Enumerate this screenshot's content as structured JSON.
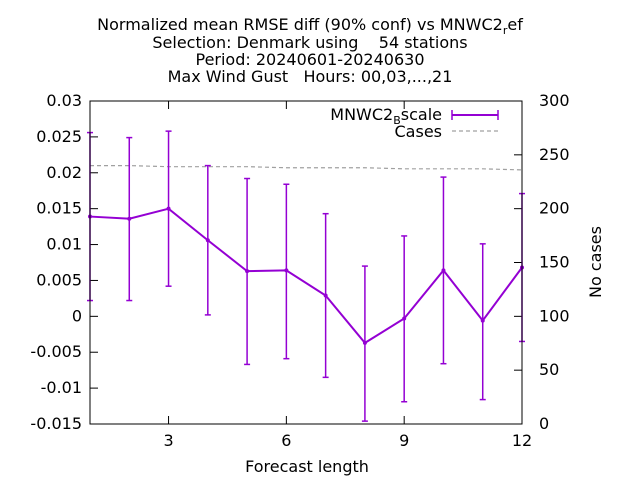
{
  "chart_data": {
    "type": "line",
    "title": {
      "line1_prefix": "Normalized mean RMSE diff (90% conf) vs MNWC2",
      "line1_sub": "r",
      "line1_suffix": "ef",
      "line2": "Selection: Denmark using    54 stations",
      "line3": "Period: 20240601-20240630",
      "line4": "Max Wind Gust   Hours: 00,03,...,21"
    },
    "xlabel": "Forecast length",
    "ylabel": "",
    "y2label": "No cases",
    "xlim": [
      1,
      12
    ],
    "ylim": [
      -0.015,
      0.03
    ],
    "y2lim": [
      0,
      300
    ],
    "xticks": [
      "3",
      "6",
      "9",
      "12"
    ],
    "yticks": [
      "0.03",
      "0.025",
      "0.02",
      "0.015",
      "0.01",
      "0.005",
      "0",
      "-0.005",
      "-0.01",
      "-0.015"
    ],
    "y2ticks": [
      "300",
      "250",
      "200",
      "150",
      "100",
      "50",
      "0"
    ],
    "legend_position": "top-right",
    "series": [
      {
        "name_prefix": "MNWC2",
        "name_sub": "B",
        "name_suffix": "scale",
        "color": "#9400d3",
        "style": "line-with-errorbars",
        "x": [
          1,
          2,
          3,
          4,
          5,
          6,
          7,
          8,
          9,
          10,
          11,
          12
        ],
        "y": [
          0.0139,
          0.0136,
          0.015,
          0.0106,
          0.0063,
          0.0064,
          0.0029,
          -0.0037,
          -0.0003,
          0.0064,
          -0.0006,
          0.0068
        ],
        "y_low": [
          0.0022,
          0.0022,
          0.0042,
          0.0002,
          -0.0067,
          -0.0059,
          -0.0085,
          -0.0146,
          -0.0119,
          -0.0066,
          -0.0116,
          -0.0035
        ],
        "y_high": [
          0.0256,
          0.0249,
          0.0258,
          0.021,
          0.0192,
          0.0184,
          0.0143,
          0.007,
          0.0112,
          0.0194,
          0.0101,
          0.0171
        ]
      },
      {
        "name": "Cases",
        "color": "#a0a0a0",
        "style": "dashed",
        "axis": "y2",
        "x": [
          1,
          2,
          3,
          4,
          5,
          6,
          7,
          8,
          9,
          10,
          11,
          12
        ],
        "y": [
          240,
          240,
          239,
          239,
          239,
          238,
          238,
          238,
          237,
          237,
          237,
          236
        ]
      }
    ]
  }
}
